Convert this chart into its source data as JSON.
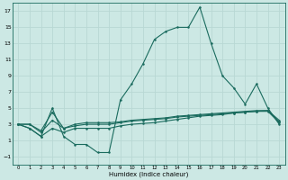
{
  "xlabel": "Humidex (Indice chaleur)",
  "background_color": "#cce8e4",
  "grid_color": "#b8d8d4",
  "line_color": "#1a6b5e",
  "x_values": [
    0,
    1,
    2,
    3,
    4,
    5,
    6,
    7,
    8,
    9,
    10,
    11,
    12,
    13,
    14,
    15,
    16,
    17,
    18,
    19,
    20,
    21,
    22,
    23
  ],
  "main_y": [
    3,
    2.5,
    1.5,
    5,
    1.5,
    0.5,
    0.5,
    -0.5,
    -0.5,
    6,
    8,
    10.5,
    13.5,
    14.5,
    15,
    15,
    17.5,
    13,
    9,
    7.5,
    5.5,
    8,
    5,
    3
  ],
  "line2_y": [
    3,
    2.5,
    1.5,
    2.5,
    2.0,
    2.5,
    2.5,
    2.5,
    2.5,
    2.8,
    3.0,
    3.1,
    3.2,
    3.4,
    3.6,
    3.8,
    4.0,
    4.1,
    4.2,
    4.4,
    4.5,
    4.6,
    4.7,
    3.5
  ],
  "line3_y": [
    3,
    3,
    2,
    3.5,
    2.5,
    3.0,
    3.2,
    3.2,
    3.2,
    3.3,
    3.5,
    3.6,
    3.7,
    3.8,
    4.0,
    4.1,
    4.2,
    4.3,
    4.4,
    4.5,
    4.6,
    4.7,
    4.7,
    3.3
  ],
  "line4_y": [
    3,
    3,
    2.2,
    4.5,
    2.5,
    2.8,
    3.0,
    3.0,
    3.0,
    3.2,
    3.4,
    3.5,
    3.6,
    3.7,
    3.9,
    4.0,
    4.1,
    4.2,
    4.3,
    4.4,
    4.5,
    4.6,
    4.6,
    3.2
  ],
  "ylim": [
    -2,
    18
  ],
  "yticks": [
    -1,
    1,
    3,
    5,
    7,
    9,
    11,
    13,
    15,
    17
  ],
  "xlim": [
    -0.5,
    23.5
  ]
}
